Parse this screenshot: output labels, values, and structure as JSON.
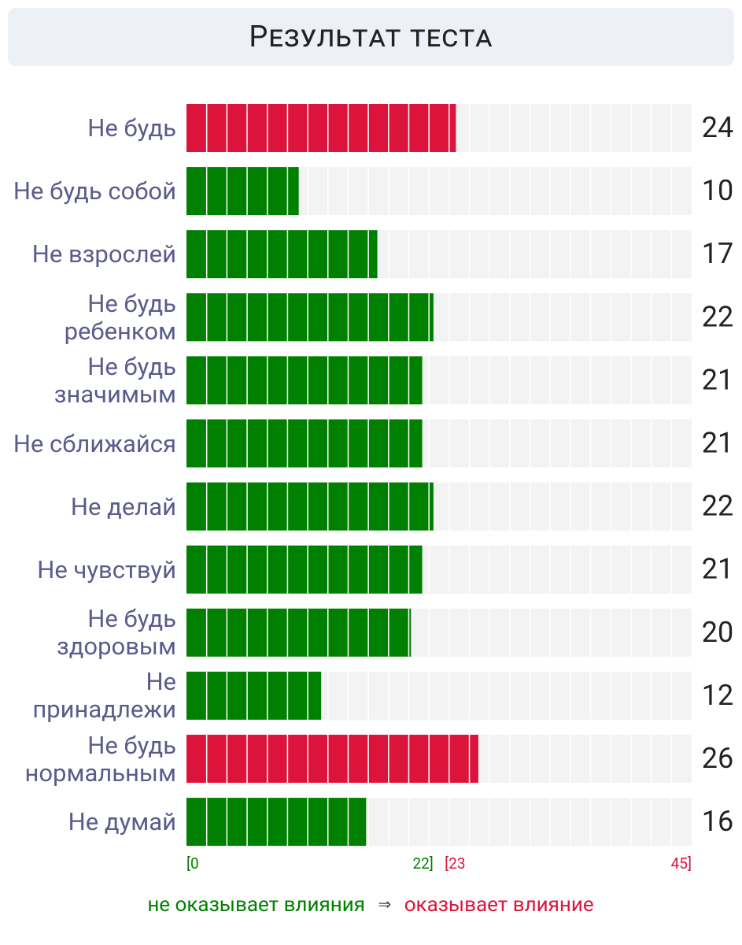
{
  "chart_data": {
    "type": "hbar",
    "title": "Результат теста",
    "categories": [
      "Не будь",
      "Не будь собой",
      "Не взрослей",
      "Не будь ребенком",
      "Не будь значимым",
      "Не сближайся",
      "Не делай",
      "Не чувствуй",
      "Не будь здоровым",
      "Не принадлежи",
      "Не будь нормальным",
      "Не думай"
    ],
    "values": [
      24,
      10,
      17,
      22,
      21,
      21,
      22,
      21,
      20,
      12,
      26,
      16
    ],
    "colors": [
      "#dc143c",
      "#008000",
      "#008000",
      "#008000",
      "#008000",
      "#008000",
      "#008000",
      "#008000",
      "#008000",
      "#008000",
      "#dc143c",
      "#008000"
    ],
    "xlim": [
      0,
      45
    ],
    "xticks": [
      {
        "value": 0,
        "label": "[0",
        "color": "#008000"
      },
      {
        "value": 22,
        "label": "22]",
        "color": "#008000"
      },
      {
        "value": 23,
        "label": "[23",
        "color": "#dc143c"
      },
      {
        "value": 45,
        "label": "45]",
        "color": "#dc143c"
      }
    ],
    "legend": {
      "items": [
        {
          "label": "не оказывает влияния",
          "color": "#008000"
        },
        {
          "label": "оказывает влияние",
          "color": "#dc143c"
        }
      ],
      "arrow": "⇒"
    }
  }
}
